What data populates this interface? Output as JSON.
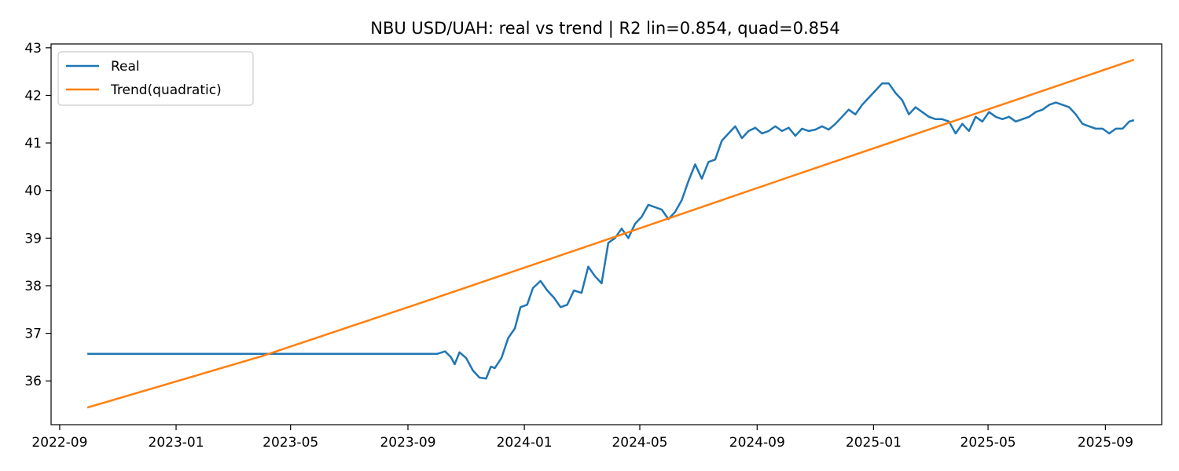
{
  "chart_data": {
    "type": "line",
    "title": "NBU USD/UAH: real vs trend | R2 lin=0.854, quad=0.854",
    "xlabel": "",
    "ylabel": "",
    "x_type": "date",
    "xlim": [
      "2022-08-23",
      "2025-10-30"
    ],
    "ylim": [
      35.08,
      43.08
    ],
    "x_ticks": [
      "2022-09",
      "2023-01",
      "2023-05",
      "2023-09",
      "2024-01",
      "2024-05",
      "2024-09",
      "2025-01",
      "2025-05",
      "2025-09"
    ],
    "y_ticks": [
      36,
      37,
      38,
      39,
      40,
      41,
      42,
      43
    ],
    "grid": false,
    "legend_position": "top-left",
    "colors": {
      "Real": "#1f77b4",
      "Trend(quadratic)": "#ff7f0e"
    },
    "series": [
      {
        "name": "Real",
        "x": [
          "2022-09-30",
          "2023-10-02",
          "2023-10-10",
          "2023-10-16",
          "2023-10-20",
          "2023-10-25",
          "2023-11-01",
          "2023-11-08",
          "2023-11-15",
          "2023-11-22",
          "2023-11-27",
          "2023-12-01",
          "2023-12-08",
          "2023-12-15",
          "2023-12-22",
          "2023-12-28",
          "2024-01-04",
          "2024-01-10",
          "2024-01-18",
          "2024-01-25",
          "2024-02-01",
          "2024-02-08",
          "2024-02-15",
          "2024-02-22",
          "2024-03-01",
          "2024-03-08",
          "2024-03-15",
          "2024-03-22",
          "2024-03-29",
          "2024-04-05",
          "2024-04-12",
          "2024-04-19",
          "2024-04-26",
          "2024-05-03",
          "2024-05-10",
          "2024-05-17",
          "2024-05-24",
          "2024-05-31",
          "2024-06-07",
          "2024-06-14",
          "2024-06-21",
          "2024-06-28",
          "2024-07-05",
          "2024-07-12",
          "2024-07-19",
          "2024-07-26",
          "2024-08-02",
          "2024-08-09",
          "2024-08-16",
          "2024-08-23",
          "2024-08-30",
          "2024-09-06",
          "2024-09-13",
          "2024-09-20",
          "2024-09-27",
          "2024-10-04",
          "2024-10-11",
          "2024-10-18",
          "2024-10-25",
          "2024-11-01",
          "2024-11-08",
          "2024-11-15",
          "2024-11-22",
          "2024-11-29",
          "2024-12-06",
          "2024-12-13",
          "2024-12-20",
          "2024-12-27",
          "2025-01-03",
          "2025-01-10",
          "2025-01-17",
          "2025-01-24",
          "2025-01-31",
          "2025-02-07",
          "2025-02-14",
          "2025-02-21",
          "2025-02-28",
          "2025-03-07",
          "2025-03-14",
          "2025-03-21",
          "2025-03-28",
          "2025-04-04",
          "2025-04-11",
          "2025-04-18",
          "2025-04-25",
          "2025-05-02",
          "2025-05-09",
          "2025-05-16",
          "2025-05-23",
          "2025-05-30",
          "2025-06-06",
          "2025-06-13",
          "2025-06-20",
          "2025-06-27",
          "2025-07-04",
          "2025-07-11",
          "2025-07-18",
          "2025-07-25",
          "2025-08-01",
          "2025-08-08",
          "2025-08-15",
          "2025-08-22",
          "2025-08-29",
          "2025-09-05",
          "2025-09-12",
          "2025-09-19",
          "2025-09-26",
          "2025-10-01"
        ],
        "y": [
          36.57,
          36.57,
          36.62,
          36.5,
          36.35,
          36.6,
          36.48,
          36.22,
          36.07,
          36.05,
          36.3,
          36.27,
          36.48,
          36.9,
          37.1,
          37.55,
          37.6,
          37.95,
          38.1,
          37.9,
          37.75,
          37.55,
          37.6,
          37.9,
          37.85,
          38.4,
          38.2,
          38.05,
          38.9,
          39.0,
          39.2,
          39.0,
          39.3,
          39.45,
          39.7,
          39.65,
          39.6,
          39.4,
          39.55,
          39.8,
          40.2,
          40.55,
          40.25,
          40.6,
          40.65,
          41.05,
          41.2,
          41.35,
          41.1,
          41.25,
          41.32,
          41.2,
          41.25,
          41.35,
          41.25,
          41.32,
          41.15,
          41.3,
          41.25,
          41.28,
          41.35,
          41.28,
          41.4,
          41.55,
          41.7,
          41.6,
          41.8,
          41.95,
          42.1,
          42.25,
          42.25,
          42.05,
          41.9,
          41.6,
          41.75,
          41.65,
          41.55,
          41.5,
          41.5,
          41.45,
          41.2,
          41.4,
          41.25,
          41.55,
          41.45,
          41.65,
          41.55,
          41.5,
          41.55,
          41.45,
          41.5,
          41.55,
          41.65,
          41.7,
          41.8,
          41.85,
          41.8,
          41.75,
          41.6,
          41.4,
          41.35,
          41.3,
          41.3,
          41.2,
          41.3,
          41.3,
          41.45,
          41.48
        ]
      },
      {
        "name": "Trend(quadratic)",
        "x": [
          "2022-09-30",
          "2023-04-01",
          "2023-10-01",
          "2024-04-01",
          "2024-10-01",
          "2025-04-01",
          "2025-10-01"
        ],
        "y": [
          35.44,
          36.52,
          37.75,
          39.0,
          40.26,
          41.5,
          42.75
        ]
      }
    ]
  }
}
